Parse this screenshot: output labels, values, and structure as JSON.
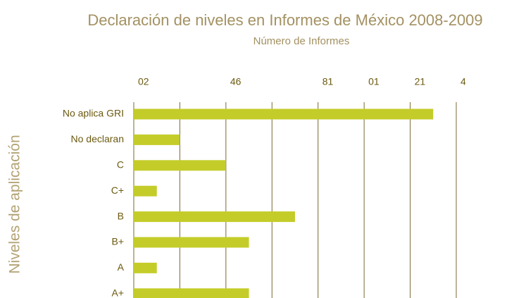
{
  "chart_data": {
    "type": "barh",
    "title": "Declaración de niveles en Informes de México 2008-2009",
    "subtitle": "Número de Informes",
    "ylabel": "Niveles de aplicación",
    "categories": [
      "No aplica GRI",
      "No declaran",
      "C",
      "C+",
      "B",
      "B+",
      "A",
      "A+"
    ],
    "values": [
      13,
      2,
      4,
      1,
      7,
      5,
      1,
      5
    ],
    "color": "#c4cc2a",
    "xlim": [
      0,
      14
    ],
    "xticks": [
      {
        "value": 0,
        "label": "02"
      },
      {
        "value": 4,
        "label": "46"
      },
      {
        "value": 8,
        "label": "81"
      },
      {
        "value": 10,
        "label": "01"
      },
      {
        "value": 12,
        "label": "21"
      },
      {
        "value": 14,
        "label": "4"
      }
    ],
    "gridlines": [
      0,
      2,
      4,
      6,
      8,
      10,
      12,
      14
    ],
    "grid": true
  }
}
